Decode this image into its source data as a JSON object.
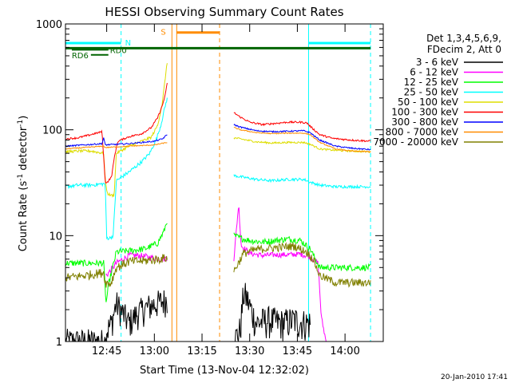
{
  "colors": {
    "3-6": "#000000",
    "6-12": "#ff00ff",
    "12-25": "#00ff00",
    "25-50": "#00ffff",
    "50-100": "#dddd00",
    "100-300": "#ff0000",
    "300-800": "#0000ff",
    "800-7000": "#ff8c00",
    "7000-20000": "#808000",
    "night": "#00ffff",
    "saa": "#ff8c00",
    "rd": "#006400"
  },
  "chart_data": {
    "type": "line",
    "title": "HESSI Observing Summary Count Rates",
    "xlabel": "Start Time (13-Nov-04 12:32:02)",
    "ylabel": "Count Rate (s",
    "ylabel_sup1": "-1",
    "ylabel_mid": " detector",
    "ylabel_sup2": "-1",
    "ylabel_end": ")",
    "x_unit": "minutes after 12:32:02",
    "xlim": [
      0,
      100
    ],
    "ylim": [
      1,
      1000
    ],
    "yscale": "log",
    "x_tick_labels": [
      {
        "x": 12.97,
        "label": "12:45"
      },
      {
        "x": 27.97,
        "label": "13:00"
      },
      {
        "x": 42.97,
        "label": "13:15"
      },
      {
        "x": 57.97,
        "label": "13:30"
      },
      {
        "x": 72.97,
        "label": "13:45"
      },
      {
        "x": 87.97,
        "label": "14:00"
      }
    ],
    "y_tick_labels": [
      {
        "y": 1,
        "label": "1"
      },
      {
        "y": 10,
        "label": "10"
      },
      {
        "y": 100,
        "label": "100"
      },
      {
        "y": 1000,
        "label": "1000"
      }
    ],
    "legend": {
      "position": "right",
      "header": [
        "Det 1,3,4,5,6,9,",
        "FDecim 2, Att 0"
      ],
      "entries": [
        "3 - 6 keV",
        "6 - 12 keV",
        "12 - 25 keV",
        "25 - 50 keV",
        "50 - 100 keV",
        "100 - 300 keV",
        "300 - 800 keV",
        "800 - 7000 keV",
        "7000 - 20000 keV"
      ]
    },
    "annotations": {
      "night_label": "N",
      "saa_label": "S",
      "rd0_label": "RD0",
      "rd6_label": "RD6",
      "night_intervals": [
        [
          -2,
          17.5
        ],
        [
          76.5,
          96
        ]
      ],
      "night_bar_y": 660,
      "saa_interval": [
        33.5,
        48.5
      ],
      "saa_bar_y": 830,
      "rd_bar": {
        "start": 0,
        "end": 96,
        "y": 590
      },
      "rd0_segment": {
        "start": 2,
        "end": 13.5,
        "y": 570
      },
      "rd6_segment": {
        "start": 8,
        "end": 13.5,
        "y": 510
      }
    },
    "series": [
      {
        "name": "3 - 6 keV",
        "color_key": "3-6",
        "segments": [
          {
            "x": [
              0,
              12.5,
              12.6,
              14.5,
              16,
              20,
              23,
              27,
              30.5,
              32
            ],
            "y": [
              1,
              1,
              1.2,
              1.5,
              2.3,
              1.5,
              1.9,
              2.2,
              2.4,
              2.5
            ],
            "noise": 0.32
          },
          {
            "x": [
              53,
              55,
              56,
              57,
              60,
              64,
              68,
              72,
              75,
              77
            ],
            "y": [
              1,
              1.3,
              2.8,
              2.6,
              1.5,
              1.6,
              1.5,
              1.6,
              1.5,
              1.5
            ],
            "noise": 0.35
          },
          {
            "x": [
              77,
              90,
              96
            ],
            "y": [
              1,
              1,
              1
            ],
            "noise": 0
          }
        ]
      },
      {
        "name": "6 - 12 keV",
        "color_key": "6-12",
        "segments": [
          {
            "x": [
              0,
              12.5
            ],
            "y": [
              1,
              1
            ],
            "noise": 0
          },
          {
            "x": [
              12.7,
              14,
              16,
              20,
              23,
              27,
              30.5,
              32
            ],
            "y": [
              4.2,
              4.6,
              5.5,
              6.5,
              6.5,
              6.2,
              6.0,
              6.2
            ],
            "noise": 0.07
          },
          {
            "x": [
              53,
              54.5,
              55.3,
              56.5,
              58,
              62,
              66,
              70,
              74,
              77,
              79.5,
              80.5,
              82
            ],
            "y": [
              6.0,
              20,
              8,
              7.5,
              6.8,
              6.5,
              6.6,
              6.6,
              6.7,
              6.3,
              5.5,
              1.7,
              1
            ],
            "noise": 0.06
          },
          {
            "x": [
              82,
              96
            ],
            "y": [
              1,
              1
            ],
            "noise": 0
          }
        ]
      },
      {
        "name": "12 - 25 keV",
        "color_key": "12-25",
        "segments": [
          {
            "x": [
              0,
              12,
              12.8,
              13.6,
              14.5,
              16,
              20,
              25,
              29,
              31,
              32
            ],
            "y": [
              5.5,
              5.5,
              2.3,
              3.5,
              4.5,
              7.0,
              7.2,
              7.5,
              8.5,
              11,
              14
            ],
            "noise": 0.07
          },
          {
            "x": [
              53,
              55,
              58,
              62,
              66,
              70,
              74,
              77,
              80,
              85,
              90,
              96
            ],
            "y": [
              10,
              9.5,
              9,
              8.7,
              9,
              9.3,
              9,
              7.5,
              5.0,
              5.0,
              5.0,
              5.0
            ],
            "noise": 0.07
          }
        ]
      },
      {
        "name": "25 - 50 keV",
        "color_key": "25-50",
        "segments": [
          {
            "x": [
              0,
              4,
              8,
              12.5,
              13,
              14,
              15,
              16,
              20,
              24,
              26.5,
              28.5,
              30,
              31,
              32
            ],
            "y": [
              29,
              30,
              30,
              31,
              9.5,
              9.5,
              10,
              33,
              40,
              50,
              60,
              80,
              110,
              150,
              200
            ],
            "noise": 0.04
          },
          {
            "x": [
              53,
              55,
              60,
              65,
              70,
              75,
              77,
              80,
              85,
              90,
              96
            ],
            "y": [
              37,
              36,
              34,
              33,
              34,
              34,
              32,
              30,
              29,
              29,
              29
            ],
            "noise": 0.03
          }
        ]
      },
      {
        "name": "50 - 100 keV",
        "color_key": "50-100",
        "segments": [
          {
            "x": [
              0,
              4,
              8,
              12,
              12.5,
              13.2,
              14.3,
              15.3,
              16,
              20,
              24,
              27,
              29,
              30.5,
              31.5,
              32
            ],
            "y": [
              62,
              63,
              63,
              60,
              34,
              25,
              24,
              24,
              60,
              70,
              78,
              85,
              110,
              180,
              330,
              430
            ],
            "noise": 0.03
          },
          {
            "x": [
              53,
              55,
              60,
              65,
              70,
              75,
              77,
              80,
              85,
              90,
              96
            ],
            "y": [
              84,
              82,
              77,
              75,
              76,
              76,
              73,
              66,
              64,
              63,
              62
            ],
            "noise": 0.02
          }
        ]
      },
      {
        "name": "100 - 300 keV",
        "color_key": "100-300",
        "segments": [
          {
            "x": [
              0,
              4,
              8,
              11.5,
              12.5,
              13.2,
              14.5,
              15.5,
              16.5,
              20,
              24,
              27,
              29,
              30.5,
              31.5,
              32
            ],
            "y": [
              82,
              84,
              90,
              96,
              32,
              32,
              36,
              58,
              78,
              86,
              92,
              105,
              130,
              170,
              220,
              280
            ],
            "noise": 0.02
          },
          {
            "x": [
              53,
              55,
              58,
              62,
              66,
              70,
              74,
              76,
              77,
              80,
              84,
              90,
              96
            ],
            "y": [
              145,
              132,
              118,
              112,
              115,
              118,
              118,
              116,
              108,
              90,
              83,
              80,
              78
            ],
            "noise": 0.02
          }
        ]
      },
      {
        "name": "300 - 800 keV",
        "color_key": "300-800",
        "segments": [
          {
            "x": [
              0,
              6,
              11.5,
              12,
              12.5,
              20,
              28,
              30.5,
              32
            ],
            "y": [
              70,
              72,
              74,
              84,
              72,
              74,
              78,
              82,
              90
            ],
            "noise": 0.015
          },
          {
            "x": [
              53,
              55,
              60,
              65,
              70,
              75,
              77,
              80,
              85,
              90,
              96
            ],
            "y": [
              112,
              106,
              98,
              96,
              97,
              98,
              94,
              80,
              70,
              67,
              65
            ],
            "noise": 0.015
          }
        ]
      },
      {
        "name": "800 - 7000 keV",
        "color_key": "800-7000",
        "segments": [
          {
            "x": [
              0,
              6,
              12,
              12.5,
              20,
              28,
              32
            ],
            "y": [
              66,
              68,
              70,
              68,
              70,
              72,
              76
            ],
            "noise": 0.01
          },
          {
            "x": [
              53,
              55,
              60,
              65,
              70,
              75,
              77,
              80,
              85,
              90,
              96
            ],
            "y": [
              105,
              100,
              94,
              92,
              93,
              93,
              90,
              76,
              66,
              63,
              62
            ],
            "noise": 0.01
          }
        ]
      },
      {
        "name": "7000 - 20000 keV",
        "color_key": "7000-20000",
        "segments": [
          {
            "x": [
              0,
              6,
              12,
              12.6,
              14.2,
              16,
              20,
              25,
              29,
              32
            ],
            "y": [
              4.0,
              4.2,
              4.5,
              3.6,
              3.5,
              5.0,
              5.7,
              5.8,
              6.0,
              6.2
            ],
            "noise": 0.1
          },
          {
            "x": [
              53,
              56,
              60,
              64,
              68,
              72,
              76,
              78,
              80,
              85,
              90,
              96
            ],
            "y": [
              4.6,
              6.8,
              7.4,
              7.6,
              7.8,
              8.0,
              7.0,
              6.0,
              4.2,
              3.6,
              3.6,
              3.6
            ],
            "noise": 0.09
          }
        ]
      }
    ]
  },
  "footer": {
    "timestamp": "20-Jan-2010 17:41"
  }
}
